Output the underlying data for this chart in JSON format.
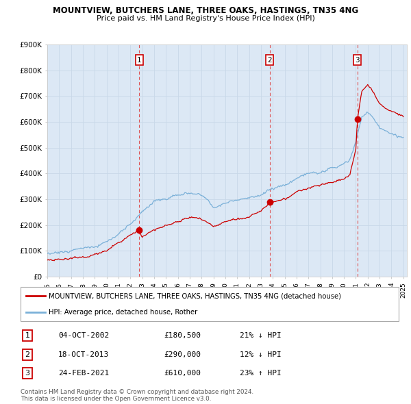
{
  "title": "MOUNTVIEW, BUTCHERS LANE, THREE OAKS, HASTINGS, TN35 4NG",
  "subtitle": "Price paid vs. HM Land Registry's House Price Index (HPI)",
  "ylim": [
    0,
    900000
  ],
  "yticks": [
    0,
    100000,
    200000,
    300000,
    400000,
    500000,
    600000,
    700000,
    800000,
    900000
  ],
  "ytick_labels": [
    "£0",
    "£100K",
    "£200K",
    "£300K",
    "£400K",
    "£500K",
    "£600K",
    "£700K",
    "£800K",
    "£900K"
  ],
  "hpi_color": "#7ab0d8",
  "price_color": "#cc0000",
  "dashed_color": "#dd6666",
  "bg_color": "#dce8f5",
  "legend_label_price": "MOUNTVIEW, BUTCHERS LANE, THREE OAKS, HASTINGS, TN35 4NG (detached house)",
  "legend_label_hpi": "HPI: Average price, detached house, Rother",
  "sales": [
    {
      "num": 1,
      "date": "04-OCT-2002",
      "price": 180500,
      "year": 2002.75,
      "pct": "21%",
      "dir": "↓"
    },
    {
      "num": 2,
      "date": "18-OCT-2013",
      "price": 290000,
      "year": 2013.75,
      "pct": "12%",
      "dir": "↓"
    },
    {
      "num": 3,
      "date": "24-FEB-2021",
      "price": 610000,
      "year": 2021.12,
      "pct": "23%",
      "dir": "↑"
    }
  ],
  "footer": "Contains HM Land Registry data © Crown copyright and database right 2024.\nThis data is licensed under the Open Government Licence v3.0."
}
